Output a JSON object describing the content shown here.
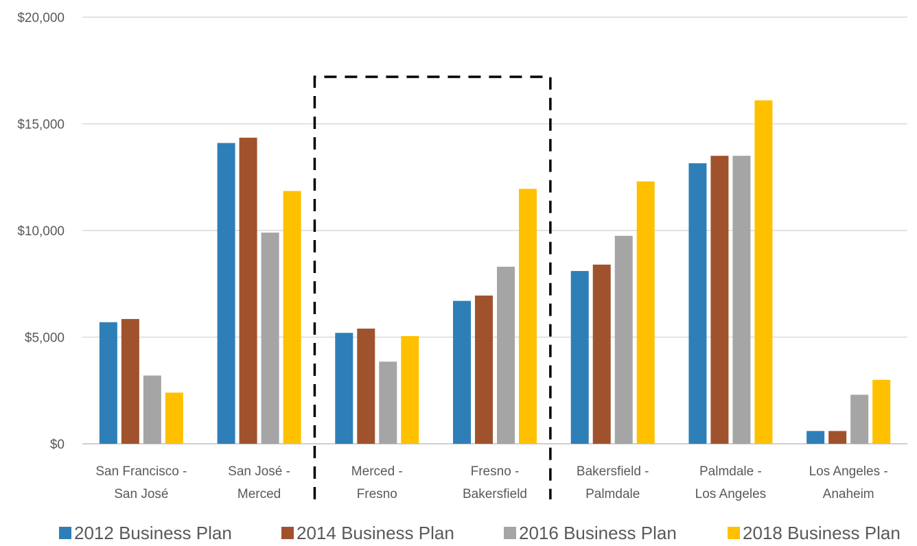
{
  "chart_data": {
    "type": "bar",
    "title": "",
    "xlabel": "",
    "ylabel": "",
    "ylim": [
      0,
      20000
    ],
    "yticks": [
      "$0",
      "$5,000",
      "$10,000",
      "$15,000",
      "$20,000"
    ],
    "ytick_values": [
      0,
      5000,
      10000,
      15000,
      20000
    ],
    "grid": true,
    "legend_position": "bottom",
    "categories": [
      [
        "San Francisco -",
        "San José"
      ],
      [
        "San José -",
        "Merced"
      ],
      [
        "Merced -",
        "Fresno"
      ],
      [
        "Fresno -",
        "Bakersfield"
      ],
      [
        "Bakersfield -",
        "Palmdale"
      ],
      [
        "Palmdale -",
        "Los Angeles"
      ],
      [
        "Los Angeles -",
        "Anaheim"
      ]
    ],
    "series": [
      {
        "name": "2012 Business Plan",
        "color": "#2E7FB8",
        "values": [
          5700,
          14100,
          5200,
          6700,
          8100,
          13150,
          600
        ]
      },
      {
        "name": "2014 Business Plan",
        "color": "#A0522D",
        "values": [
          5850,
          14350,
          5400,
          6950,
          8400,
          13500,
          600
        ]
      },
      {
        "name": "2016 Business Plan",
        "color": "#A5A5A5",
        "values": [
          3200,
          9900,
          3850,
          8300,
          9750,
          13500,
          2300
        ]
      },
      {
        "name": "2018 Business Plan",
        "color": "#FFC000",
        "values": [
          2400,
          11850,
          5050,
          11950,
          12300,
          16100,
          3000
        ]
      }
    ],
    "highlight_group": [
      "Merced -",
      "Fresno -"
    ]
  }
}
